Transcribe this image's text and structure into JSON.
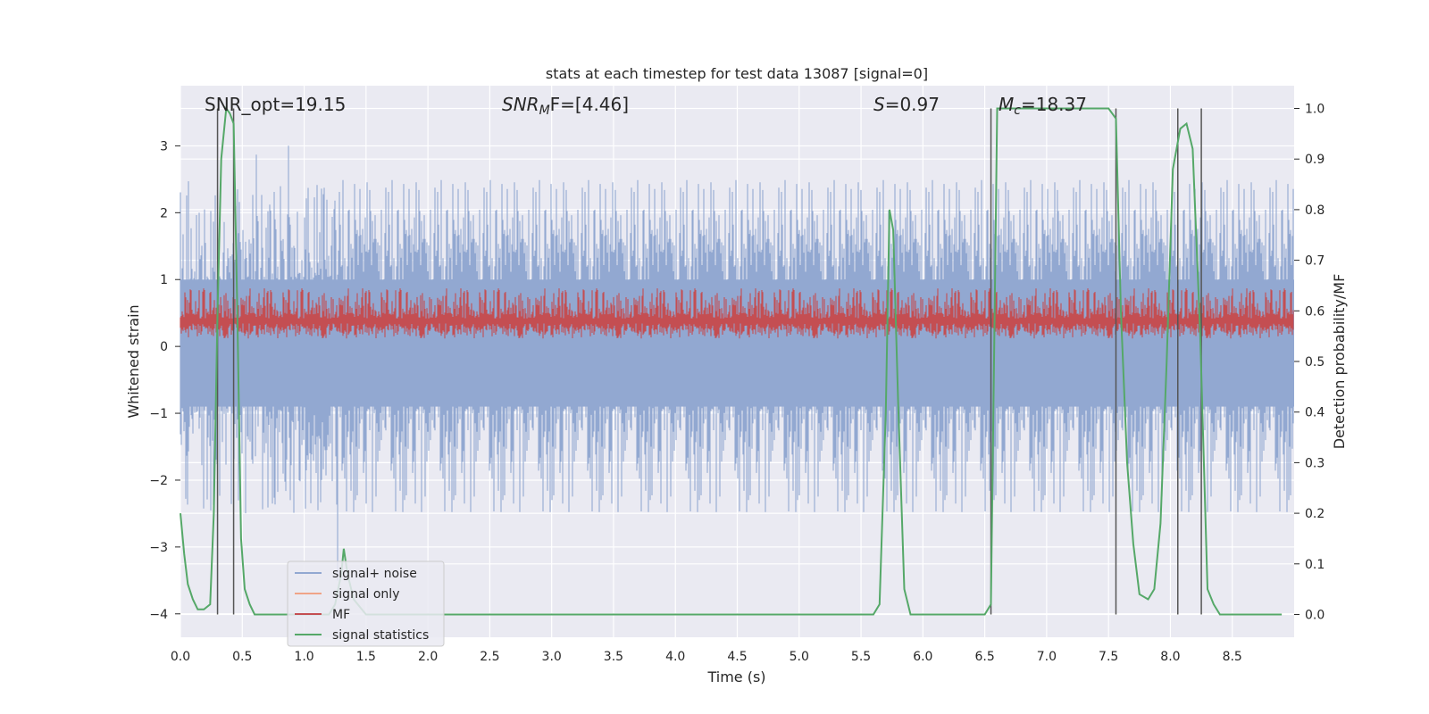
{
  "chart_data": {
    "type": "line",
    "title": "stats at each timestep for test data 13087 [signal=0]",
    "xlabel": "Time (s)",
    "ylabel": "Whitened strain",
    "y2label": "Detection probability/MF",
    "xlim": [
      0.0,
      9.0
    ],
    "ylim": [
      -4.35,
      3.9
    ],
    "y2lim": [
      -0.045,
      1.045
    ],
    "x_ticks": [
      "0.0",
      "0.5",
      "1.0",
      "1.5",
      "2.0",
      "2.5",
      "3.0",
      "3.5",
      "4.0",
      "4.5",
      "5.0",
      "5.5",
      "6.0",
      "6.5",
      "7.0",
      "7.5",
      "8.0",
      "8.5"
    ],
    "y_ticks": [
      "3",
      "2",
      "1",
      "0",
      "−1",
      "−2",
      "−3",
      "−4"
    ],
    "y2_ticks": [
      "1.0",
      "0.9",
      "0.8",
      "0.7",
      "0.6",
      "0.5",
      "0.4",
      "0.3",
      "0.2",
      "0.1",
      "0.0"
    ],
    "grid": true,
    "legend_position": "lower-left",
    "annotations": {
      "snr_opt": "SNR_opt=19.15",
      "snr_mf_sym": "SNR",
      "snr_mf_sub": "M",
      "snr_mf_rest": "F=[4.46]",
      "s_sym": "S",
      "s_rest": "=0.97",
      "mc_sym": "M",
      "mc_sub": "c",
      "mc_rest": "=18.37"
    },
    "vertical_lines": [
      0.3,
      0.43,
      6.55,
      7.56,
      8.06,
      8.25
    ],
    "series": [
      {
        "name": "signal+ noise",
        "color": "#92a8d1",
        "axis": "left",
        "shown_as": "noise band",
        "typical_range": [
          -1.8,
          2.0
        ],
        "extremes": [
          -4.0,
          3.3
        ]
      },
      {
        "name": "signal only",
        "color": "#f0a487",
        "axis": "left",
        "values": []
      },
      {
        "name": "MF",
        "color": "#c44e52",
        "axis": "right",
        "shown_as": "noise band",
        "typical_range": [
          0.52,
          0.65
        ]
      },
      {
        "name": "signal statistics",
        "color": "#55a868",
        "axis": "right",
        "x": [
          0.0,
          0.03,
          0.06,
          0.1,
          0.14,
          0.19,
          0.24,
          0.27,
          0.3,
          0.33,
          0.37,
          0.4,
          0.43,
          0.46,
          0.49,
          0.52,
          0.56,
          0.6,
          0.7,
          0.8,
          0.9,
          1.0,
          1.1,
          1.2,
          1.25,
          1.3,
          1.32,
          1.35,
          1.4,
          1.5,
          2.0,
          3.0,
          4.0,
          4.5,
          5.0,
          5.5,
          5.6,
          5.65,
          5.7,
          5.73,
          5.76,
          5.8,
          5.85,
          5.9,
          6.0,
          6.5,
          6.55,
          6.58,
          6.6,
          6.65,
          6.7,
          7.0,
          7.3,
          7.5,
          7.56,
          7.6,
          7.65,
          7.7,
          7.75,
          7.82,
          7.87,
          7.92,
          7.97,
          8.02,
          8.08,
          8.13,
          8.18,
          8.24,
          8.3,
          8.35,
          8.4,
          8.45,
          8.5,
          8.6,
          8.9
        ],
        "values": [
          0.2,
          0.12,
          0.06,
          0.03,
          0.01,
          0.01,
          0.02,
          0.2,
          0.6,
          0.9,
          1.0,
          0.99,
          0.97,
          0.6,
          0.15,
          0.05,
          0.02,
          0.0,
          0.0,
          0.0,
          0.0,
          0.0,
          0.0,
          0.0,
          0.02,
          0.08,
          0.13,
          0.08,
          0.03,
          0.0,
          0.0,
          0.0,
          0.0,
          0.0,
          0.0,
          0.0,
          0.0,
          0.02,
          0.4,
          0.8,
          0.76,
          0.42,
          0.05,
          0.0,
          0.0,
          0.0,
          0.02,
          0.6,
          1.0,
          1.0,
          1.0,
          1.0,
          1.0,
          1.0,
          0.98,
          0.6,
          0.3,
          0.14,
          0.04,
          0.03,
          0.05,
          0.18,
          0.5,
          0.88,
          0.96,
          0.97,
          0.92,
          0.56,
          0.05,
          0.02,
          0.0,
          0.0,
          0.0,
          0.0,
          0.0
        ]
      }
    ]
  }
}
